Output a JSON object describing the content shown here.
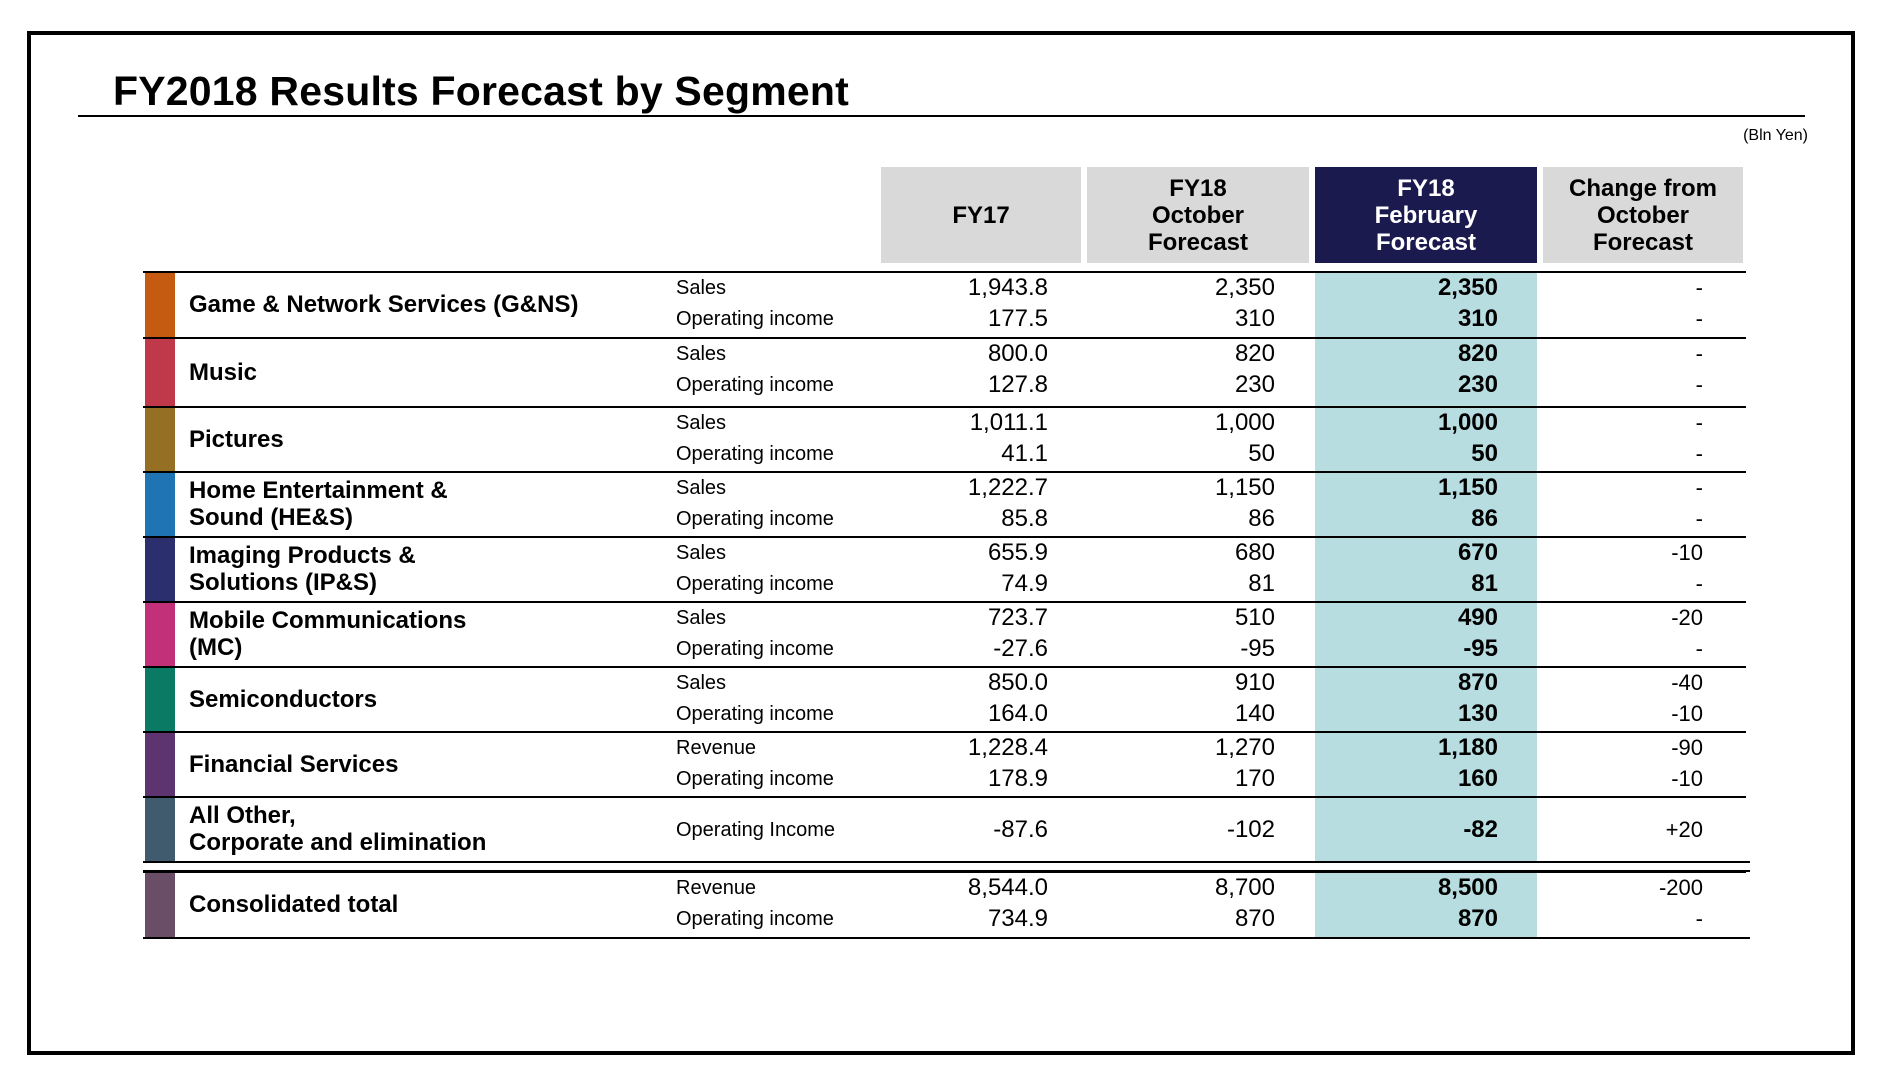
{
  "title": "FY2018 Results Forecast by Segment",
  "units": "(Bln Yen)",
  "columns": {
    "fy17": "FY17",
    "oct": "FY18\nOctober\nForecast",
    "feb": "FY18\nFebruary\nForecast",
    "change": "Change from\nOctober\nForecast"
  },
  "colors": {
    "header_gray": "#d9d9d9",
    "header_dark": "#1b1a4e",
    "highlight": "#b7dde1"
  },
  "segments": [
    {
      "name": "Game & Network Services (G&NS)",
      "color": "#c55a11",
      "rows": [
        {
          "metric": "Sales",
          "fy17": "1,943.8",
          "oct": "2,350",
          "feb": "2,350",
          "change": "-"
        },
        {
          "metric": "Operating income",
          "fy17": "177.5",
          "oct": "310",
          "feb": "310",
          "change": "-"
        }
      ]
    },
    {
      "name": "Music",
      "color": "#c0394b",
      "rows": [
        {
          "metric": "Sales",
          "fy17": "800.0",
          "oct": "820",
          "feb": "820",
          "change": "-"
        },
        {
          "metric": "Operating income",
          "fy17": "127.8",
          "oct": "230",
          "feb": "230",
          "change": "-"
        }
      ]
    },
    {
      "name": "Pictures",
      "color": "#957024",
      "rows": [
        {
          "metric": "Sales",
          "fy17": "1,011.1",
          "oct": "1,000",
          "feb": "1,000",
          "change": "-"
        },
        {
          "metric": "Operating income",
          "fy17": "41.1",
          "oct": "50",
          "feb": "50",
          "change": "-"
        }
      ]
    },
    {
      "name": "Home Entertainment &\nSound (HE&S)",
      "color": "#1f74b4",
      "rows": [
        {
          "metric": "Sales",
          "fy17": "1,222.7",
          "oct": "1,150",
          "feb": "1,150",
          "change": "-"
        },
        {
          "metric": "Operating income",
          "fy17": "85.8",
          "oct": "86",
          "feb": "86",
          "change": "-"
        }
      ]
    },
    {
      "name": "Imaging Products &\nSolutions (IP&S)",
      "color": "#2b2f6e",
      "rows": [
        {
          "metric": "Sales",
          "fy17": "655.9",
          "oct": "680",
          "feb": "670",
          "change": "-10"
        },
        {
          "metric": "Operating income",
          "fy17": "74.9",
          "oct": "81",
          "feb": "81",
          "change": "-"
        }
      ]
    },
    {
      "name": "Mobile Communications\n(MC)",
      "color": "#c2307a",
      "rows": [
        {
          "metric": "Sales",
          "fy17": "723.7",
          "oct": "510",
          "feb": "490",
          "change": "-20"
        },
        {
          "metric": "Operating income",
          "fy17": "-27.6",
          "oct": "-95",
          "feb": "-95",
          "change": "-"
        }
      ]
    },
    {
      "name": "Semiconductors",
      "color": "#0a7a64",
      "rows": [
        {
          "metric": "Sales",
          "fy17": "850.0",
          "oct": "910",
          "feb": "870",
          "change": "-40"
        },
        {
          "metric": "Operating income",
          "fy17": "164.0",
          "oct": "140",
          "feb": "130",
          "change": "-10"
        }
      ]
    },
    {
      "name": "Financial Services",
      "color": "#5e3470",
      "rows": [
        {
          "metric": "Revenue",
          "fy17": "1,228.4",
          "oct": "1,270",
          "feb": "1,180",
          "change": "-90"
        },
        {
          "metric": "Operating income",
          "fy17": "178.9",
          "oct": "170",
          "feb": "160",
          "change": "-10"
        }
      ]
    },
    {
      "name": "All Other,\nCorporate and elimination",
      "color": "#405a6e",
      "rows": [
        {
          "metric": "Operating Income",
          "fy17": "-87.6",
          "oct": "-102",
          "feb": "-82",
          "change": "+20"
        }
      ]
    },
    {
      "name": "Consolidated total",
      "color": "#6a4d66",
      "rows": [
        {
          "metric": "Revenue",
          "fy17": "8,544.0",
          "oct": "8,700",
          "feb": "8,500",
          "change": "-200"
        },
        {
          "metric": "Operating income",
          "fy17": "734.9",
          "oct": "870",
          "feb": "870",
          "change": "-"
        }
      ]
    }
  ]
}
